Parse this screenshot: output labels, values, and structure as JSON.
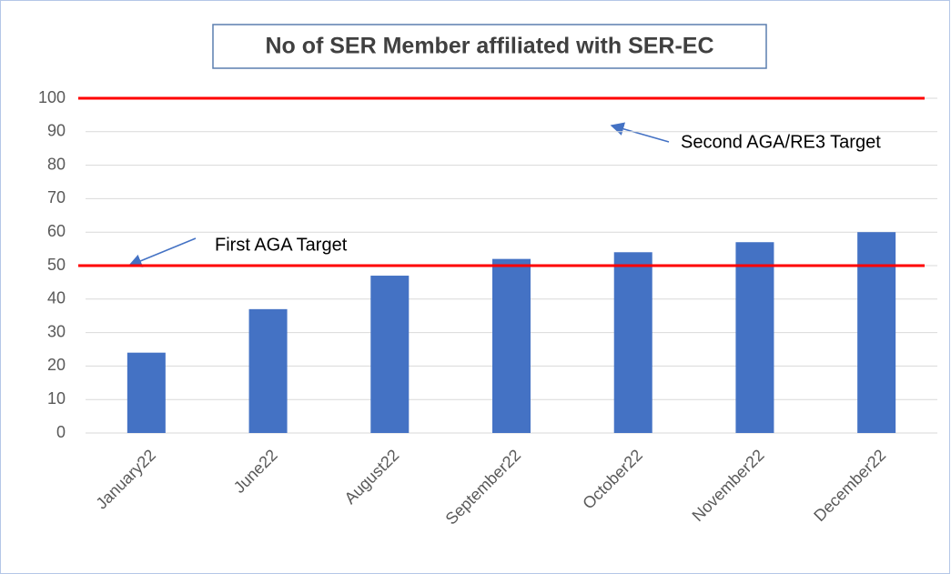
{
  "chart_data": {
    "type": "bar",
    "title": "No of SER Member affiliated with SER-EC",
    "categories": [
      "January22",
      "June22",
      "August22",
      "September22",
      "October22",
      "November22",
      "December22"
    ],
    "values": [
      24,
      37,
      47,
      52,
      54,
      57,
      60
    ],
    "color": "#4472c4",
    "ylim": [
      0,
      100
    ],
    "yticks": [
      0,
      10,
      20,
      30,
      40,
      50,
      60,
      70,
      80,
      90,
      100
    ],
    "grid": true,
    "targets": [
      {
        "value": 50,
        "label": "First AGA Target",
        "color": "#ff0000"
      },
      {
        "value": 100,
        "label": "Second AGA/RE3 Target",
        "color": "#ff0000"
      }
    ]
  }
}
